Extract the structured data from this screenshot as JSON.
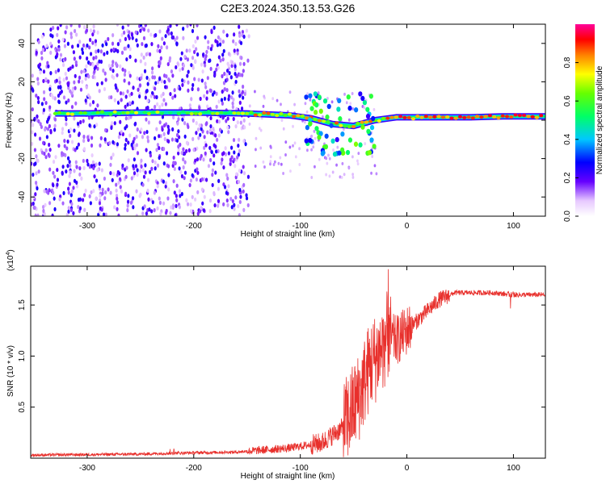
{
  "title": "C2E3.2024.350.13.53.G26",
  "chart_data": [
    {
      "type": "heatmap",
      "xlabel": "Height of straight line (km)",
      "ylabel": "Frequency (Hz)",
      "xlim": [
        -353,
        130
      ],
      "ylim": [
        -50,
        50
      ],
      "xticks": [
        -300,
        -200,
        -100,
        0,
        100
      ],
      "yticks": [
        -40,
        -20,
        0,
        20,
        40
      ],
      "colorbar": {
        "label": "Normalized spectral amplitude",
        "range": [
          0,
          1
        ],
        "ticks": [
          0.0,
          0.2,
          0.4,
          0.6,
          0.8
        ]
      },
      "ridge": [
        {
          "x": -330,
          "y": 3.5
        },
        {
          "x": -300,
          "y": 3.5
        },
        {
          "x": -250,
          "y": 4
        },
        {
          "x": -200,
          "y": 4
        },
        {
          "x": -150,
          "y": 3.5
        },
        {
          "x": -130,
          "y": 3
        },
        {
          "x": -110,
          "y": 2.5
        },
        {
          "x": -90,
          "y": 1
        },
        {
          "x": -70,
          "y": -2
        },
        {
          "x": -50,
          "y": -3
        },
        {
          "x": -30,
          "y": 0
        },
        {
          "x": -10,
          "y": 1.5
        },
        {
          "x": 20,
          "y": 1.5
        },
        {
          "x": 60,
          "y": 1.5
        },
        {
          "x": 90,
          "y": 2
        },
        {
          "x": 130,
          "y": 2
        }
      ]
    },
    {
      "type": "line",
      "xlabel": "Height of straight line (km)",
      "ylabel": "SNR (10 * v/v)",
      "yscale_label": "(x10",
      "yscale_exp": "4",
      "xlim": [
        -353,
        130
      ],
      "ylim": [
        0,
        1.88
      ],
      "xticks": [
        -300,
        -200,
        -100,
        0,
        100
      ],
      "yticks": [
        0.5,
        1.0,
        1.5
      ],
      "series": [
        {
          "color": "#e8302c",
          "envelope": [
            {
              "x": -353,
              "y": 0.03
            },
            {
              "x": -250,
              "y": 0.04
            },
            {
              "x": -220,
              "y": 0.05
            },
            {
              "x": -160,
              "y": 0.06
            },
            {
              "x": -110,
              "y": 0.1
            },
            {
              "x": -80,
              "y": 0.15
            },
            {
              "x": -60,
              "y": 0.3
            },
            {
              "x": -45,
              "y": 0.6
            },
            {
              "x": -35,
              "y": 0.9
            },
            {
              "x": -25,
              "y": 1.05
            },
            {
              "x": -18,
              "y": 1.2
            },
            {
              "x": -10,
              "y": 1.15
            },
            {
              "x": 0,
              "y": 1.25
            },
            {
              "x": 10,
              "y": 1.35
            },
            {
              "x": 20,
              "y": 1.45
            },
            {
              "x": 30,
              "y": 1.55
            },
            {
              "x": 45,
              "y": 1.62
            },
            {
              "x": 80,
              "y": 1.62
            },
            {
              "x": 100,
              "y": 1.6
            },
            {
              "x": 130,
              "y": 1.6
            }
          ]
        }
      ]
    }
  ]
}
